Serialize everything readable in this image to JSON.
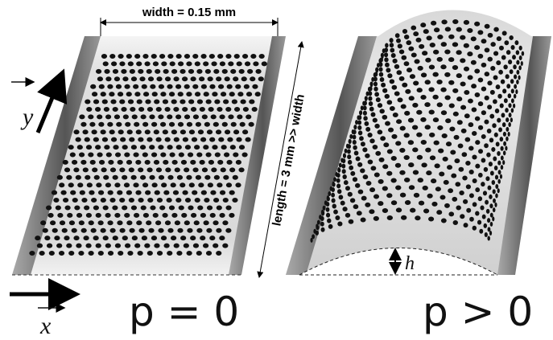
{
  "labels": {
    "width": "width = 0.15 mm",
    "length": "length = 3 mm >> width",
    "y_axis": "y",
    "x_axis": "x",
    "left_condition": "p = 0",
    "right_condition": "p > 0",
    "height": "h"
  }
}
